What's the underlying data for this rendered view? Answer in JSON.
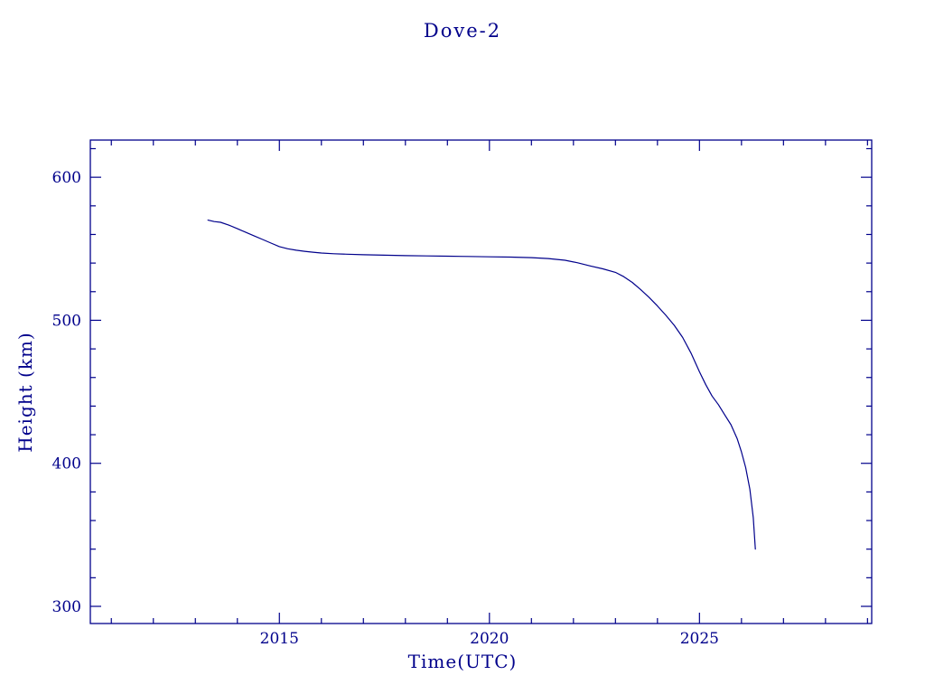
{
  "colors": {
    "axis": "#00008b",
    "line": "#00008b",
    "text": "#00008b",
    "background": "#ffffff"
  },
  "chart_data": {
    "type": "line",
    "title": "Dove-2",
    "xlabel": "Time(UTC)",
    "ylabel": "Height (km)",
    "xlim": [
      2010.5,
      2029.1
    ],
    "ylim": [
      288,
      626
    ],
    "x_major_ticks": [
      2015,
      2020,
      2025
    ],
    "x_major_tick_labels": [
      "2015",
      "2020",
      "2025"
    ],
    "x_minor_step": 1,
    "y_major_ticks": [
      300,
      400,
      500,
      600
    ],
    "y_major_tick_labels": [
      "300",
      "400",
      "500",
      "600"
    ],
    "y_minor_step": 20,
    "grid": false,
    "legend": "none",
    "series": [
      {
        "name": "Dove-2 height",
        "points": [
          [
            2013.3,
            570.0
          ],
          [
            2013.45,
            569.0
          ],
          [
            2013.6,
            568.5
          ],
          [
            2013.8,
            566.5
          ],
          [
            2014.0,
            564.0
          ],
          [
            2014.2,
            561.5
          ],
          [
            2014.4,
            559.0
          ],
          [
            2014.6,
            556.5
          ],
          [
            2014.8,
            554.0
          ],
          [
            2015.0,
            551.5
          ],
          [
            2015.2,
            550.0
          ],
          [
            2015.4,
            549.0
          ],
          [
            2015.6,
            548.2
          ],
          [
            2015.8,
            547.6
          ],
          [
            2016.0,
            547.0
          ],
          [
            2016.3,
            546.5
          ],
          [
            2016.6,
            546.2
          ],
          [
            2017.0,
            545.8
          ],
          [
            2017.5,
            545.5
          ],
          [
            2018.0,
            545.2
          ],
          [
            2018.5,
            545.0
          ],
          [
            2019.0,
            544.8
          ],
          [
            2019.5,
            544.6
          ],
          [
            2020.0,
            544.4
          ],
          [
            2020.5,
            544.2
          ],
          [
            2021.0,
            543.8
          ],
          [
            2021.4,
            543.2
          ],
          [
            2021.8,
            542.0
          ],
          [
            2022.1,
            540.2
          ],
          [
            2022.4,
            538.0
          ],
          [
            2022.7,
            536.0
          ],
          [
            2023.0,
            533.5
          ],
          [
            2023.2,
            530.5
          ],
          [
            2023.4,
            526.5
          ],
          [
            2023.6,
            521.5
          ],
          [
            2023.8,
            516.0
          ],
          [
            2024.0,
            510.0
          ],
          [
            2024.2,
            503.5
          ],
          [
            2024.4,
            496.5
          ],
          [
            2024.6,
            488.0
          ],
          [
            2024.8,
            477.0
          ],
          [
            2025.0,
            464.0
          ],
          [
            2025.15,
            455.0
          ],
          [
            2025.3,
            447.0
          ],
          [
            2025.45,
            441.0
          ],
          [
            2025.6,
            434.0
          ],
          [
            2025.75,
            427.0
          ],
          [
            2025.9,
            417.0
          ],
          [
            2026.0,
            408.0
          ],
          [
            2026.1,
            397.0
          ],
          [
            2026.2,
            382.0
          ],
          [
            2026.28,
            362.0
          ],
          [
            2026.33,
            340.0
          ]
        ]
      }
    ]
  }
}
